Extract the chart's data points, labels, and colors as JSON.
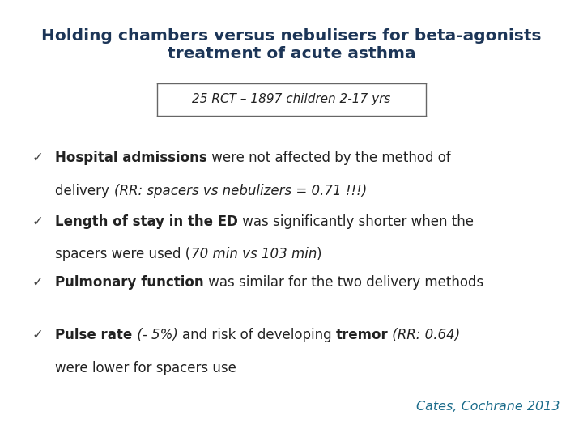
{
  "title_line1": "Holding chambers versus nebulisers for beta-agonists",
  "title_line2": "treatment of acute asthma",
  "title_color": "#1C3557",
  "subtitle_box": "25 RCT – 1897 children 2-17 yrs",
  "bullet_char": "✓",
  "bullet_color": "#444444",
  "citation": "Cates, Cochrane 2013",
  "citation_color": "#1A6B8A",
  "background_color": "#ffffff",
  "text_color": "#222222",
  "font_size_title": 14.5,
  "font_size_subtitle": 11,
  "font_size_bullet": 12,
  "font_size_citation": 11.5
}
